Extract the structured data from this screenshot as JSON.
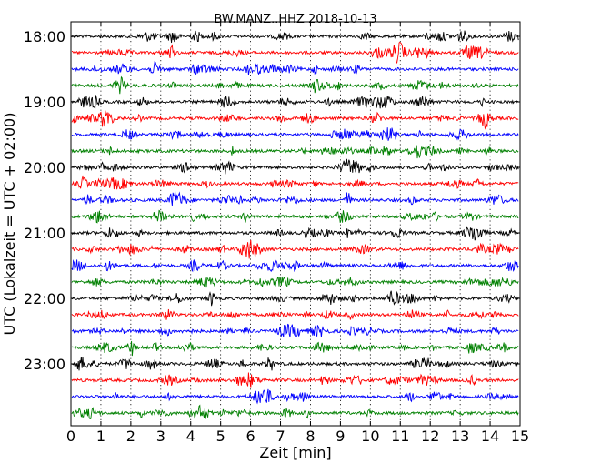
{
  "chart_data": {
    "type": "line",
    "title": "BW.MANZ..HHZ 2018-10-13",
    "xlabel": "Zeit  [min]",
    "ylabel": "UTC (Lokalzeit = UTC + 02:00)",
    "xlim": [
      0,
      15
    ],
    "x_ticks": [
      0,
      1,
      2,
      3,
      4,
      5,
      6,
      7,
      8,
      9,
      10,
      11,
      12,
      13,
      14,
      15
    ],
    "y_tick_labels": [
      "18:00",
      "19:00",
      "20:00",
      "21:00",
      "22:00",
      "23:00"
    ],
    "grid": "vertical dotted at each minute",
    "trace_colors": [
      "#000000",
      "#ff0000",
      "#0000ff",
      "#008000"
    ],
    "traces": [
      {
        "start": "18:00",
        "color": "#000000"
      },
      {
        "start": "18:15",
        "color": "#ff0000"
      },
      {
        "start": "18:30",
        "color": "#0000ff"
      },
      {
        "start": "18:45",
        "color": "#008000"
      },
      {
        "start": "19:00",
        "color": "#000000"
      },
      {
        "start": "19:15",
        "color": "#ff0000"
      },
      {
        "start": "19:30",
        "color": "#0000ff"
      },
      {
        "start": "19:45",
        "color": "#008000"
      },
      {
        "start": "20:00",
        "color": "#000000"
      },
      {
        "start": "20:15",
        "color": "#ff0000"
      },
      {
        "start": "20:30",
        "color": "#0000ff"
      },
      {
        "start": "20:45",
        "color": "#008000"
      },
      {
        "start": "21:00",
        "color": "#000000"
      },
      {
        "start": "21:15",
        "color": "#ff0000"
      },
      {
        "start": "21:30",
        "color": "#0000ff"
      },
      {
        "start": "21:45",
        "color": "#008000"
      },
      {
        "start": "22:00",
        "color": "#000000"
      },
      {
        "start": "22:15",
        "color": "#ff0000"
      },
      {
        "start": "22:30",
        "color": "#0000ff"
      },
      {
        "start": "22:45",
        "color": "#008000"
      },
      {
        "start": "23:00",
        "color": "#000000"
      },
      {
        "start": "23:15",
        "color": "#ff0000"
      },
      {
        "start": "23:30",
        "color": "#0000ff"
      },
      {
        "start": "23:45",
        "color": "#008000"
      }
    ]
  }
}
